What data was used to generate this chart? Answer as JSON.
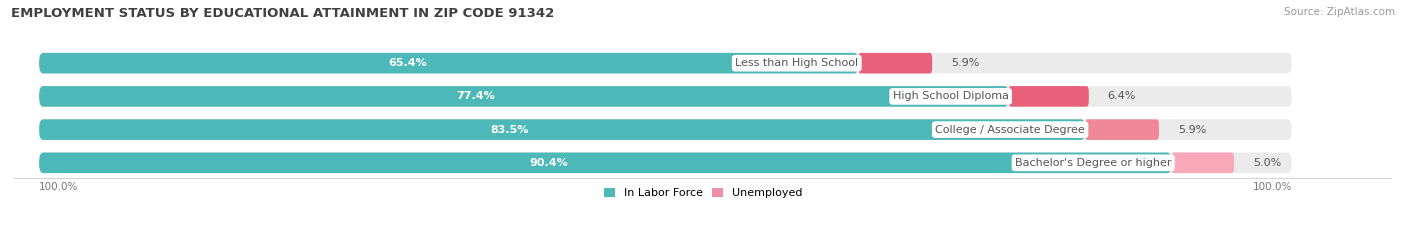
{
  "title": "EMPLOYMENT STATUS BY EDUCATIONAL ATTAINMENT IN ZIP CODE 91342",
  "source": "Source: ZipAtlas.com",
  "categories": [
    "Less than High School",
    "High School Diploma",
    "College / Associate Degree",
    "Bachelor's Degree or higher"
  ],
  "in_labor_force": [
    65.4,
    77.4,
    83.5,
    90.4
  ],
  "unemployed": [
    5.9,
    6.4,
    5.9,
    5.0
  ],
  "labor_force_color": "#4DB8B8",
  "unemployed_colors": [
    "#E8607A",
    "#E8607A",
    "#F08898",
    "#F8A8B8"
  ],
  "bar_bg_color": "#EBEBEB",
  "bar_bg_shadow": "#D8D8D8",
  "axis_label_left": "100.0%",
  "axis_label_right": "100.0%",
  "legend_labor": "In Labor Force",
  "legend_unemployed": "Unemployed",
  "title_fontsize": 9.5,
  "source_fontsize": 7.5,
  "bar_label_fontsize": 8,
  "category_fontsize": 8,
  "pct_fontsize": 8
}
